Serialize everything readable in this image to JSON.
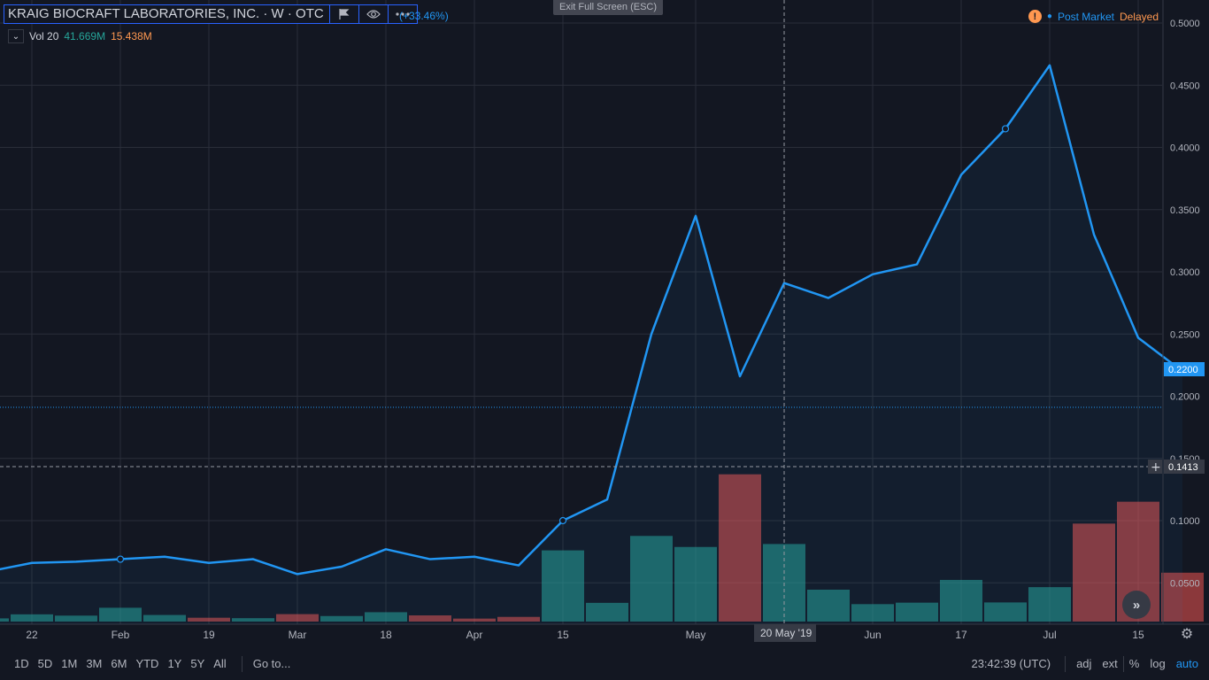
{
  "header": {
    "symbol_title": "KRAIG BIOCRAFT LABORATORIES, INC. · W · OTC",
    "change_text": "(+33.46%)",
    "exit_fullscreen": "Exit Full Screen (ESC)",
    "vol_label": "Vol 20",
    "vol_value1": "41.669M",
    "vol_value2": "15.438M",
    "status_icon": "warning-icon",
    "post_market": "Post Market",
    "delayed": "Delayed"
  },
  "price_labels": {
    "last_price": "0.2200",
    "crosshair_price": "0.1413",
    "crosshair_date": "20 May '19"
  },
  "bottom": {
    "ranges": [
      "1D",
      "5D",
      "1M",
      "3M",
      "6M",
      "YTD",
      "1Y",
      "5Y",
      "All"
    ],
    "goto": "Go to...",
    "time": "23:42:39 (UTC)",
    "adj": "adj",
    "ext": "ext",
    "pct": "%",
    "log": "log",
    "auto": "auto"
  },
  "colors": {
    "background": "#131722",
    "line": "#2196f3",
    "up_volume": "#26a69a",
    "down_volume": "#ef5350",
    "grid": "#2a2e39",
    "accent_orange": "#ff9850"
  },
  "chart_data": {
    "type": "line",
    "interval": "weekly",
    "y_ticks": [
      "0.5000",
      "0.4500",
      "0.4000",
      "0.3500",
      "0.3000",
      "0.2500",
      "0.2000",
      "0.1500",
      "0.1000",
      "0.0500"
    ],
    "ylim": [
      0.0,
      0.5
    ],
    "x_tick_labels": [
      "22",
      "Feb",
      "19",
      "Mar",
      "18",
      "Apr",
      "15",
      "May",
      "Jun",
      "17",
      "Jul",
      "15"
    ],
    "series": [
      {
        "type": "line",
        "x": [
          "2019-01-14",
          "2019-01-21",
          "2019-01-28",
          "2019-02-04",
          "2019-02-11",
          "2019-02-18",
          "2019-02-25",
          "2019-03-04",
          "2019-03-11",
          "2019-03-18",
          "2019-03-25",
          "2019-04-01",
          "2019-04-08",
          "2019-04-15",
          "2019-04-22",
          "2019-04-29",
          "2019-05-06",
          "2019-05-13",
          "2019-05-20",
          "2019-05-27",
          "2019-06-03",
          "2019-06-10",
          "2019-06-17",
          "2019-06-24",
          "2019-07-01",
          "2019-07-08",
          "2019-07-15",
          "2019-07-22"
        ],
        "values": [
          0.059,
          0.066,
          0.067,
          0.069,
          0.071,
          0.066,
          0.069,
          0.057,
          0.063,
          0.077,
          0.069,
          0.071,
          0.064,
          0.1,
          0.117,
          0.25,
          0.345,
          0.216,
          0.291,
          0.279,
          0.298,
          0.306,
          0.378,
          0.415,
          0.466,
          0.33,
          0.247,
          0.22
        ]
      },
      {
        "name": "Vol 20",
        "type": "volume",
        "values": [
          1.5,
          3.4,
          2.8,
          6.5,
          3.1,
          1.8,
          1.6,
          3.5,
          2.6,
          4.4,
          2.9,
          1.4,
          2.2,
          33.5,
          8.8,
          40.3,
          35.1,
          69.3,
          36.5,
          15.0,
          8.2,
          8.9,
          19.6,
          9.0,
          16.2,
          46.1,
          56.4,
          23.0
        ],
        "up": [
          true,
          true,
          true,
          true,
          true,
          false,
          true,
          false,
          true,
          true,
          false,
          false,
          false,
          true,
          true,
          true,
          true,
          false,
          true,
          true,
          true,
          true,
          true,
          true,
          true,
          false,
          false,
          false
        ]
      }
    ]
  }
}
